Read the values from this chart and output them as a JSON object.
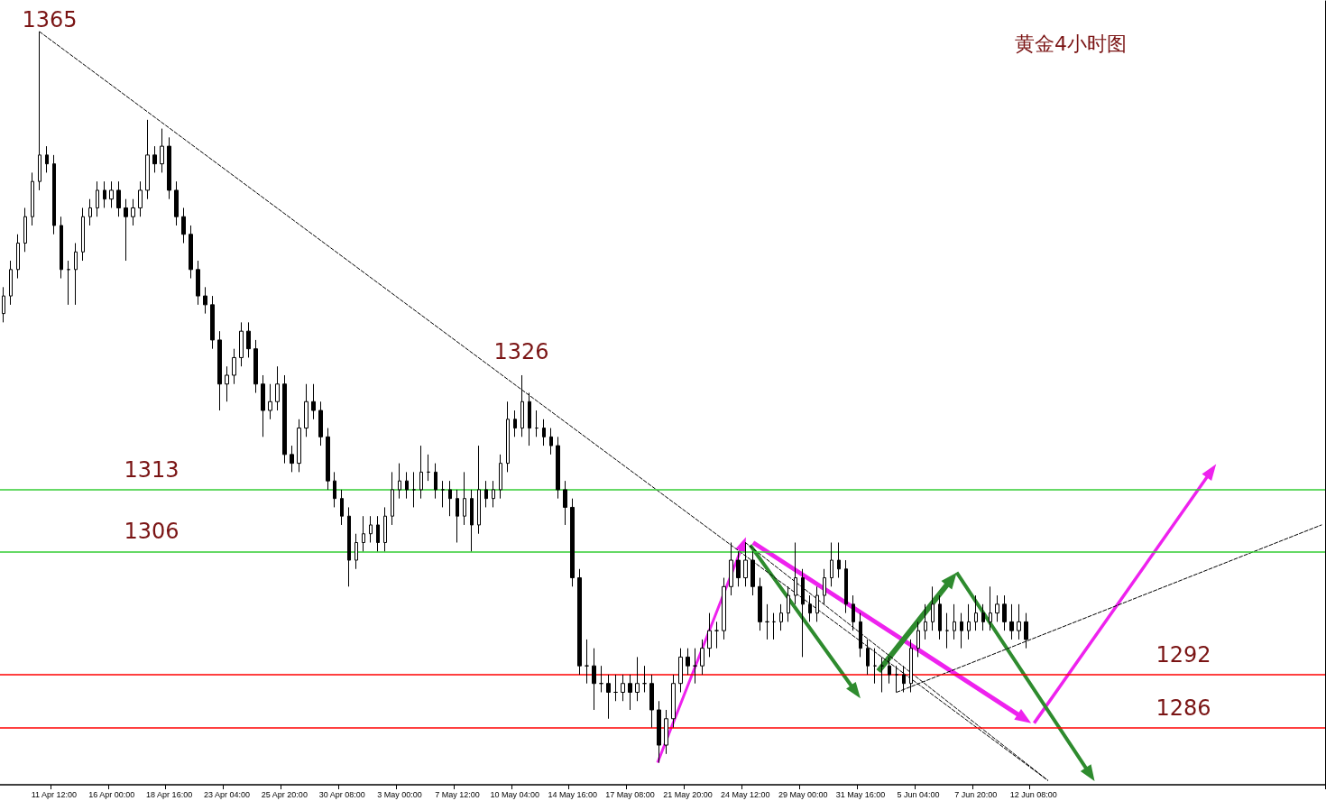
{
  "chart_data": {
    "type": "candlestick",
    "title": "黄金4小时图",
    "color": "#000000",
    "tick_labels": "x",
    "ylim": [
      1279.5,
      1368.5
    ],
    "categories": [
      null,
      null,
      null,
      null,
      null,
      null,
      null,
      "11 Apr 12:00",
      null,
      null,
      null,
      null,
      null,
      null,
      null,
      "16 Apr 00:00",
      null,
      null,
      null,
      null,
      null,
      null,
      null,
      "18 Apr 16:00",
      null,
      null,
      null,
      null,
      null,
      null,
      null,
      "23 Apr 04:00",
      null,
      null,
      null,
      null,
      null,
      null,
      null,
      "25 Apr 20:00",
      null,
      null,
      null,
      null,
      null,
      null,
      null,
      "30 Apr 08:00",
      null,
      null,
      null,
      null,
      null,
      null,
      null,
      "3 May 00:00",
      null,
      null,
      null,
      null,
      null,
      null,
      null,
      "7 May 12:00",
      null,
      null,
      null,
      null,
      null,
      null,
      null,
      "10 May 04:00",
      null,
      null,
      null,
      null,
      null,
      null,
      null,
      "14 May 16:00",
      null,
      null,
      null,
      null,
      null,
      null,
      null,
      "17 May 08:00",
      null,
      null,
      null,
      null,
      null,
      null,
      null,
      "21 May 20:00",
      null,
      null,
      null,
      null,
      null,
      null,
      null,
      "24 May 12:00",
      null,
      null,
      null,
      null,
      null,
      null,
      null,
      "29 May 00:00",
      null,
      null,
      null,
      null,
      null,
      null,
      null,
      "31 May 16:00",
      null,
      null,
      null,
      null,
      null,
      null,
      null,
      "5 Jun 04:00",
      null,
      null,
      null,
      null,
      null,
      null,
      null,
      "7 Jun 20:00",
      null,
      null,
      null,
      null,
      null,
      null,
      null,
      "12 Jun 08:00",
      null,
      null,
      null,
      null,
      null,
      null,
      null,
      null,
      null,
      null,
      null,
      null,
      null,
      null,
      null,
      null,
      null,
      null,
      null,
      null,
      null,
      null,
      null,
      null,
      null,
      null,
      null,
      null,
      null,
      null,
      null,
      null,
      null,
      null,
      null,
      null,
      null,
      null,
      null,
      null
    ],
    "ohlc": [
      [
        1333,
        1336,
        1332,
        1335
      ],
      [
        1335,
        1339,
        1334,
        1338
      ],
      [
        1338,
        1342,
        1337,
        1341
      ],
      [
        1341,
        1345,
        1340,
        1344
      ],
      [
        1344,
        1349,
        1343,
        1348
      ],
      [
        1348,
        1365,
        1347,
        1351
      ],
      [
        1351,
        1352,
        1349,
        1350
      ],
      [
        1350,
        1351,
        1342,
        1343
      ],
      [
        1343,
        1344,
        1337,
        1338
      ],
      [
        1338,
        1339,
        1334,
        1338
      ],
      [
        1338,
        1341,
        1334,
        1340
      ],
      [
        1340,
        1345,
        1339,
        1344
      ],
      [
        1344,
        1346,
        1343,
        1345
      ],
      [
        1345,
        1348,
        1344,
        1347
      ],
      [
        1347,
        1348,
        1345,
        1346
      ],
      [
        1346,
        1348,
        1345,
        1347
      ],
      [
        1347,
        1348,
        1344,
        1345
      ],
      [
        1345,
        1346,
        1339,
        1344
      ],
      [
        1344,
        1346,
        1343,
        1345
      ],
      [
        1345,
        1348,
        1344,
        1347
      ],
      [
        1347,
        1355,
        1346,
        1351
      ],
      [
        1351,
        1352,
        1349,
        1350
      ],
      [
        1350,
        1354,
        1349,
        1352
      ],
      [
        1352,
        1353,
        1346,
        1347
      ],
      [
        1347,
        1348,
        1343,
        1344
      ],
      [
        1344,
        1345,
        1341,
        1342
      ],
      [
        1342,
        1343,
        1337,
        1338
      ],
      [
        1338,
        1339,
        1334,
        1335
      ],
      [
        1335,
        1336,
        1333,
        1334
      ],
      [
        1334,
        1335,
        1329,
        1330
      ],
      [
        1330,
        1331,
        1322,
        1325
      ],
      [
        1325,
        1327,
        1323,
        1326
      ],
      [
        1326,
        1329,
        1325,
        1328
      ],
      [
        1328,
        1332,
        1327,
        1331
      ],
      [
        1331,
        1332,
        1328,
        1329
      ],
      [
        1329,
        1330,
        1324,
        1325
      ],
      [
        1325,
        1326,
        1319,
        1322
      ],
      [
        1322,
        1325,
        1321,
        1323
      ],
      [
        1323,
        1327,
        1322,
        1325
      ],
      [
        1325,
        1326,
        1316,
        1317
      ],
      [
        1317,
        1318,
        1315,
        1316
      ],
      [
        1316,
        1321,
        1315,
        1320
      ],
      [
        1320,
        1325,
        1319,
        1323
      ],
      [
        1323,
        1325,
        1321,
        1322
      ],
      [
        1322,
        1323,
        1318,
        1319
      ],
      [
        1319,
        1320,
        1313,
        1314
      ],
      [
        1314,
        1315,
        1311,
        1312
      ],
      [
        1312,
        1313,
        1309,
        1310
      ],
      [
        1310,
        1311,
        1302,
        1305
      ],
      [
        1305,
        1308,
        1304,
        1307
      ],
      [
        1307,
        1310,
        1306,
        1308
      ],
      [
        1308,
        1310,
        1307,
        1309
      ],
      [
        1309,
        1310,
        1306,
        1307
      ],
      [
        1307,
        1311,
        1306,
        1310
      ],
      [
        1310,
        1315,
        1309,
        1313
      ],
      [
        1313,
        1316,
        1312,
        1314
      ],
      [
        1314,
        1315,
        1312,
        1313
      ],
      [
        1313,
        1315,
        1311,
        1313
      ],
      [
        1313,
        1318,
        1312,
        1315
      ],
      [
        1315,
        1317,
        1314,
        1315
      ],
      [
        1315,
        1316,
        1312,
        1313
      ],
      [
        1313,
        1314,
        1311,
        1313
      ],
      [
        1313,
        1314,
        1310,
        1312
      ],
      [
        1312,
        1313,
        1307,
        1310
      ],
      [
        1310,
        1315,
        1309,
        1312
      ],
      [
        1312,
        1313,
        1306,
        1309
      ],
      [
        1309,
        1318,
        1308,
        1313
      ],
      [
        1313,
        1314,
        1311,
        1312
      ],
      [
        1312,
        1314,
        1311,
        1313
      ],
      [
        1313,
        1317,
        1312,
        1316
      ],
      [
        1316,
        1323,
        1315,
        1321
      ],
      [
        1321,
        1322,
        1319,
        1320
      ],
      [
        1320,
        1326,
        1319,
        1323
      ],
      [
        1323,
        1324,
        1318,
        1320
      ],
      [
        1320,
        1322,
        1319,
        1320
      ],
      [
        1320,
        1321,
        1318,
        1319
      ],
      [
        1319,
        1320,
        1317,
        1318
      ],
      [
        1318,
        1319,
        1312,
        1313
      ],
      [
        1313,
        1314,
        1309,
        1311
      ],
      [
        1311,
        1312,
        1302,
        1303
      ],
      [
        1303,
        1304,
        1292,
        1293
      ],
      [
        1293,
        1296,
        1291,
        1293
      ],
      [
        1293,
        1295,
        1288,
        1291
      ],
      [
        1291,
        1293,
        1290,
        1291
      ],
      [
        1291,
        1292,
        1287,
        1290
      ],
      [
        1290,
        1292,
        1289,
        1290
      ],
      [
        1290,
        1292,
        1289,
        1291
      ],
      [
        1291,
        1292,
        1288,
        1290
      ],
      [
        1290,
        1294,
        1289,
        1291
      ],
      [
        1291,
        1293,
        1290,
        1291
      ],
      [
        1291,
        1292,
        1286,
        1288
      ],
      [
        1288,
        1289,
        1282,
        1284
      ],
      [
        1284,
        1288,
        1283,
        1287
      ],
      [
        1287,
        1292,
        1286,
        1291
      ],
      [
        1291,
        1295,
        1290,
        1294
      ],
      [
        1294,
        1295,
        1292,
        1293
      ],
      [
        1293,
        1295,
        1291,
        1293
      ],
      [
        1293,
        1296,
        1292,
        1295
      ],
      [
        1295,
        1299,
        1294,
        1297
      ],
      [
        1297,
        1298,
        1295,
        1297
      ],
      [
        1297,
        1303,
        1296,
        1302
      ],
      [
        1302,
        1307,
        1301,
        1305
      ],
      [
        1305,
        1306,
        1302,
        1303
      ],
      [
        1303,
        1307,
        1302,
        1305
      ],
      [
        1305,
        1306,
        1301,
        1302
      ],
      [
        1302,
        1303,
        1297,
        1298
      ],
      [
        1298,
        1300,
        1296,
        1298
      ],
      [
        1298,
        1299,
        1296,
        1298
      ],
      [
        1298,
        1300,
        1297,
        1299
      ],
      [
        1299,
        1302,
        1298,
        1301
      ],
      [
        1301,
        1307,
        1300,
        1303
      ],
      [
        1303,
        1304,
        1294,
        1300
      ],
      [
        1300,
        1301,
        1298,
        1299
      ],
      [
        1299,
        1302,
        1298,
        1301
      ],
      [
        1301,
        1304,
        1300,
        1303
      ],
      [
        1303,
        1307,
        1302,
        1305
      ],
      [
        1305,
        1307,
        1303,
        1304
      ],
      [
        1304,
        1305,
        1299,
        1300
      ],
      [
        1300,
        1301,
        1297,
        1298
      ],
      [
        1298,
        1299,
        1294,
        1295
      ],
      [
        1295,
        1296,
        1292,
        1293
      ],
      [
        1293,
        1295,
        1291,
        1293
      ],
      [
        1293,
        1294,
        1290,
        1293
      ],
      [
        1293,
        1294,
        1291,
        1292
      ],
      [
        1292,
        1293,
        1290,
        1292
      ],
      [
        1292,
        1293,
        1290,
        1291
      ],
      [
        1291,
        1296,
        1290,
        1295
      ],
      [
        1295,
        1298,
        1294,
        1297
      ],
      [
        1297,
        1300,
        1296,
        1298
      ],
      [
        1298,
        1302,
        1297,
        1300
      ],
      [
        1300,
        1301,
        1296,
        1297
      ],
      [
        1297,
        1299,
        1295,
        1297
      ],
      [
        1297,
        1300,
        1296,
        1298
      ],
      [
        1298,
        1299,
        1295,
        1297
      ],
      [
        1297,
        1300,
        1296,
        1298
      ],
      [
        1298,
        1301,
        1297,
        1299
      ],
      [
        1299,
        1300,
        1297,
        1298
      ],
      [
        1298,
        1302,
        1297,
        1299
      ],
      [
        1299,
        1301,
        1298,
        1300
      ],
      [
        1300,
        1301,
        1297,
        1298
      ],
      [
        1298,
        1300,
        1296,
        1297
      ],
      [
        1297,
        1300,
        1296,
        1298
      ],
      [
        1298,
        1299,
        1295,
        1296
      ],
      null,
      null,
      null,
      null,
      null,
      null,
      null,
      null,
      null,
      null,
      null,
      null,
      null,
      null,
      null,
      null,
      null,
      null,
      null,
      null,
      null,
      null,
      null,
      null,
      null,
      null,
      null,
      null,
      null,
      null,
      null,
      null,
      null,
      null,
      null,
      null,
      null,
      null,
      null,
      null,
      null
    ],
    "series": [
      {
        "type": "line",
        "color": "#000000",
        "line_style": "dashed",
        "marker": "none",
        "values": [
          null,
          null,
          null,
          null,
          null,
          1365,
          null,
          null,
          null,
          null,
          null,
          null,
          null,
          null,
          null,
          null,
          null,
          null,
          null,
          null,
          null,
          null,
          null,
          null,
          null,
          null,
          null,
          null,
          null,
          null,
          null,
          null,
          null,
          null,
          null,
          null,
          null,
          null,
          null,
          null,
          null,
          null,
          null,
          null,
          null,
          null,
          null,
          null,
          null,
          null,
          null,
          null,
          null,
          null,
          null,
          null,
          null,
          null,
          null,
          null,
          null,
          null,
          null,
          null,
          null,
          null,
          null,
          null,
          null,
          null,
          null,
          null,
          null,
          null,
          null,
          null,
          null,
          null,
          null,
          null,
          null,
          null,
          null,
          null,
          null,
          null,
          null,
          null,
          null,
          null,
          null,
          null,
          null,
          null,
          null,
          null,
          null,
          null,
          null,
          null,
          null,
          null,
          null,
          null,
          null,
          null,
          null,
          null,
          null,
          null,
          null,
          null,
          null,
          null,
          null,
          null,
          null,
          null,
          null,
          null,
          null,
          null,
          null,
          null,
          null,
          null,
          null,
          null,
          null,
          null,
          null,
          null,
          null,
          null,
          null,
          null,
          null,
          null,
          null,
          null,
          null,
          null,
          null,
          null,
          null,
          1280,
          null,
          null,
          null,
          null,
          null,
          null,
          null,
          null,
          null,
          null,
          null,
          null,
          null,
          null,
          null,
          null,
          null,
          null,
          null,
          null,
          null,
          null,
          null,
          null,
          null,
          null,
          null,
          null,
          null,
          null,
          null,
          null,
          null,
          null,
          null,
          null,
          null,
          null
        ]
      },
      {
        "type": "line",
        "color": "#000000",
        "line_style": "dashed",
        "marker": "none",
        "values": [
          null,
          null,
          null,
          null,
          null,
          null,
          null,
          null,
          null,
          null,
          null,
          null,
          null,
          null,
          null,
          null,
          null,
          null,
          null,
          null,
          null,
          null,
          null,
          null,
          null,
          null,
          null,
          null,
          null,
          null,
          null,
          null,
          null,
          null,
          null,
          null,
          null,
          null,
          null,
          null,
          null,
          null,
          null,
          null,
          null,
          null,
          null,
          null,
          null,
          null,
          null,
          null,
          null,
          null,
          null,
          null,
          null,
          null,
          null,
          null,
          null,
          null,
          null,
          null,
          null,
          null,
          null,
          null,
          null,
          null,
          null,
          null,
          null,
          null,
          null,
          null,
          null,
          null,
          null,
          null,
          null,
          null,
          null,
          null,
          null,
          null,
          null,
          null,
          null,
          null,
          null,
          null,
          null,
          null,
          null,
          null,
          null,
          null,
          null,
          null,
          null,
          null,
          null,
          null,
          null,
          null,
          null,
          null,
          null,
          null,
          null,
          null,
          null,
          null,
          null,
          null,
          null,
          null,
          null,
          null,
          null,
          null,
          null,
          null,
          1290,
          null,
          null,
          null,
          null,
          null,
          null,
          null,
          null,
          null,
          null,
          null,
          null,
          null,
          null,
          null,
          null,
          null,
          null,
          null,
          null,
          null,
          null,
          null,
          null,
          null,
          null,
          null,
          null,
          null,
          null,
          null,
          null,
          null,
          null,
          null,
          null,
          null,
          null,
          null,
          null,
          null,
          null,
          null,
          null,
          null,
          null,
          null,
          null,
          null,
          null,
          null,
          null,
          null,
          null,
          null,
          null,
          null,
          null,
          1309
        ]
      },
      {
        "type": "line",
        "color": "#000000",
        "line_style": "dashed",
        "marker": "none",
        "values": [
          null,
          null,
          null,
          null,
          null,
          null,
          null,
          null,
          null,
          null,
          null,
          null,
          null,
          null,
          null,
          null,
          null,
          null,
          null,
          null,
          null,
          null,
          null,
          null,
          null,
          null,
          null,
          null,
          null,
          null,
          null,
          null,
          null,
          null,
          null,
          null,
          null,
          null,
          null,
          null,
          null,
          null,
          null,
          null,
          null,
          null,
          null,
          null,
          null,
          null,
          null,
          null,
          null,
          null,
          null,
          null,
          null,
          null,
          null,
          null,
          null,
          null,
          null,
          null,
          null,
          null,
          null,
          null,
          null,
          null,
          null,
          null,
          null,
          null,
          null,
          null,
          null,
          null,
          null,
          null,
          null,
          null,
          null,
          null,
          null,
          null,
          null,
          null,
          null,
          null,
          null,
          null,
          null,
          null,
          null,
          null,
          null,
          null,
          null,
          null,
          null,
          null,
          null,
          1307,
          null,
          null,
          null,
          null,
          null,
          null,
          null,
          null,
          null,
          null,
          null,
          null,
          null,
          null,
          null,
          null,
          null,
          null,
          null,
          null,
          null,
          null,
          null,
          null,
          null,
          null,
          null,
          null,
          null,
          null,
          null,
          null,
          null,
          null,
          null,
          null,
          null,
          null,
          null,
          null,
          null,
          1280,
          null,
          null,
          null,
          null,
          null,
          null,
          null,
          null,
          null,
          null,
          null,
          null,
          null,
          null,
          null,
          null,
          null,
          null,
          null,
          null,
          null,
          null,
          null,
          null,
          null,
          null,
          null,
          null,
          null,
          null,
          null,
          null,
          null,
          null,
          null,
          null,
          null,
          null
        ]
      }
    ],
    "ref_lines": [
      {
        "axis": "y",
        "value": 1313,
        "label": "1313",
        "color": "#33cc33"
      },
      {
        "axis": "y",
        "value": 1306,
        "label": "1306",
        "color": "#33cc33"
      },
      {
        "axis": "y",
        "value": 1292,
        "label": "1292",
        "color": "#ff0000"
      },
      {
        "axis": "y",
        "value": 1286,
        "label": "1286",
        "color": "#ff0000"
      }
    ],
    "annotations": [
      "1365",
      "1326"
    ]
  }
}
